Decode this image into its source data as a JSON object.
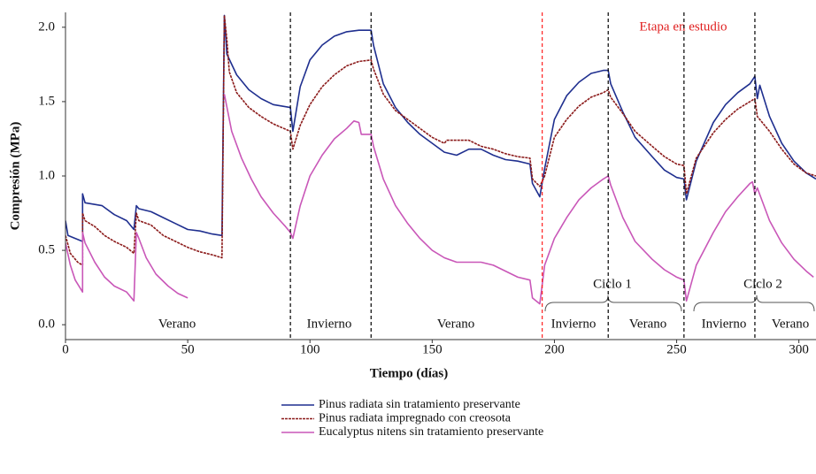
{
  "chart_data": {
    "type": "line",
    "x_label": "Tiempo (días)",
    "y_label": "Compresión (MPa)",
    "xlim": [
      0,
      307
    ],
    "ylim": [
      -0.1,
      2.1
    ],
    "xticks": [
      0,
      50,
      100,
      150,
      200,
      250,
      300
    ],
    "yticks": [
      {
        "value": 0,
        "label": "0.0"
      },
      {
        "value": 0.5,
        "label": "0.5"
      },
      {
        "value": 1,
        "label": "1.0"
      },
      {
        "value": 1.5,
        "label": "1.5"
      },
      {
        "value": 2,
        "label": "2.0"
      }
    ],
    "phase_lines": [
      {
        "x": 92,
        "color": "#000000"
      },
      {
        "x": 125,
        "color": "#000000"
      },
      {
        "x": 195,
        "color": "#ff2020"
      },
      {
        "x": 222,
        "color": "#000000"
      },
      {
        "x": 253,
        "color": "#000000"
      },
      {
        "x": 282,
        "color": "#000000"
      }
    ],
    "annotations": [
      "Verano",
      "Invierno",
      "Verano",
      "Etapa en estudio",
      "Invierno",
      "Verano",
      "Ciclo 1",
      "Invierno",
      "Verano",
      "Ciclo 2"
    ],
    "series": [
      {
        "name": "Pinus radiata sin tratamiento preservante",
        "color": "#1f2f8f",
        "dashed": false,
        "x": [
          0,
          1,
          4,
          7,
          7,
          8,
          15,
          20,
          25,
          28,
          29,
          30,
          35,
          40,
          45,
          50,
          55,
          60,
          64,
          65,
          66,
          70,
          75,
          80,
          85,
          92,
          93,
          96,
          100,
          105,
          110,
          115,
          120,
          125,
          126,
          130,
          135,
          140,
          145,
          150,
          155,
          160,
          165,
          170,
          175,
          180,
          185,
          190,
          191,
          194,
          196,
          200,
          205,
          210,
          215,
          220,
          222,
          223,
          228,
          233,
          240,
          245,
          250,
          253,
          254,
          258,
          265,
          270,
          275,
          280,
          282,
          283,
          284,
          288,
          293,
          298,
          303,
          307
        ],
        "values": [
          0.7,
          0.6,
          0.58,
          0.56,
          0.88,
          0.82,
          0.8,
          0.74,
          0.7,
          0.64,
          0.8,
          0.78,
          0.76,
          0.72,
          0.68,
          0.64,
          0.63,
          0.61,
          0.6,
          2.08,
          1.82,
          1.68,
          1.58,
          1.52,
          1.48,
          1.46,
          1.3,
          1.6,
          1.78,
          1.88,
          1.94,
          1.97,
          1.98,
          1.98,
          1.88,
          1.62,
          1.46,
          1.36,
          1.28,
          1.22,
          1.16,
          1.14,
          1.18,
          1.18,
          1.14,
          1.11,
          1.1,
          1.08,
          0.95,
          0.86,
          1.05,
          1.38,
          1.54,
          1.63,
          1.69,
          1.71,
          1.71,
          1.62,
          1.43,
          1.26,
          1.13,
          1.04,
          0.99,
          0.98,
          0.84,
          1.1,
          1.36,
          1.48,
          1.56,
          1.62,
          1.67,
          1.52,
          1.61,
          1.4,
          1.22,
          1.1,
          1.02,
          0.98
        ]
      },
      {
        "name": "Pinus radiata impregnado con creosota",
        "color": "#8b1a1a",
        "dashed": true,
        "x": [
          0,
          2,
          5,
          7,
          7,
          8,
          12,
          16,
          20,
          25,
          28,
          29,
          30,
          35,
          40,
          45,
          50,
          55,
          60,
          64,
          65,
          66,
          67,
          70,
          75,
          80,
          85,
          92,
          93,
          96,
          100,
          105,
          110,
          115,
          120,
          125,
          126,
          130,
          135,
          140,
          145,
          150,
          155,
          156,
          165,
          170,
          175,
          180,
          185,
          190,
          191,
          194,
          196,
          200,
          205,
          210,
          215,
          220,
          222,
          223,
          228,
          233,
          240,
          245,
          250,
          253,
          254,
          258,
          265,
          270,
          275,
          280,
          282,
          283,
          288,
          293,
          298,
          303,
          307
        ],
        "values": [
          0.6,
          0.48,
          0.42,
          0.4,
          0.75,
          0.7,
          0.66,
          0.6,
          0.56,
          0.52,
          0.48,
          0.75,
          0.7,
          0.67,
          0.6,
          0.56,
          0.52,
          0.49,
          0.47,
          0.45,
          2.08,
          1.92,
          1.7,
          1.56,
          1.46,
          1.4,
          1.35,
          1.3,
          1.18,
          1.34,
          1.48,
          1.6,
          1.68,
          1.74,
          1.77,
          1.78,
          1.72,
          1.55,
          1.44,
          1.38,
          1.32,
          1.26,
          1.22,
          1.24,
          1.24,
          1.2,
          1.18,
          1.15,
          1.13,
          1.12,
          0.98,
          0.93,
          1.0,
          1.26,
          1.38,
          1.47,
          1.53,
          1.56,
          1.58,
          1.53,
          1.42,
          1.3,
          1.2,
          1.13,
          1.08,
          1.07,
          0.88,
          1.12,
          1.29,
          1.38,
          1.45,
          1.5,
          1.52,
          1.4,
          1.3,
          1.18,
          1.08,
          1.02,
          1.0
        ]
      },
      {
        "name": "Eucalyptus nitens sin tratamiento preservante",
        "color": "#c957b8",
        "dashed": false,
        "x": [
          0,
          2,
          4,
          7,
          7,
          8,
          12,
          16,
          20,
          25,
          28,
          29,
          30,
          33,
          37,
          42,
          46,
          50,
          57,
          65,
          68,
          72,
          76,
          80,
          85,
          90,
          92,
          93,
          96,
          100,
          105,
          110,
          115,
          118,
          120,
          121,
          125,
          126,
          130,
          135,
          140,
          145,
          150,
          155,
          160,
          165,
          170,
          175,
          180,
          185,
          190,
          191,
          194,
          196,
          200,
          205,
          210,
          215,
          220,
          222,
          223,
          228,
          233,
          240,
          245,
          250,
          253,
          254,
          258,
          265,
          270,
          275,
          280,
          281,
          282,
          283,
          288,
          293,
          298,
          303,
          306
        ],
        "values": [
          0.55,
          0.4,
          0.3,
          0.22,
          0.62,
          0.55,
          0.42,
          0.32,
          0.26,
          0.22,
          0.16,
          0.62,
          0.58,
          0.45,
          0.34,
          0.26,
          0.21,
          0.18,
          null,
          1.55,
          1.3,
          1.12,
          0.98,
          0.86,
          0.75,
          0.66,
          0.62,
          0.58,
          0.8,
          1.0,
          1.14,
          1.25,
          1.32,
          1.37,
          1.36,
          1.28,
          1.28,
          1.2,
          0.98,
          0.8,
          0.68,
          0.58,
          0.5,
          0.45,
          0.42,
          0.42,
          0.42,
          0.4,
          0.36,
          0.32,
          0.3,
          0.18,
          0.14,
          0.4,
          0.58,
          0.72,
          0.84,
          0.92,
          0.98,
          1.0,
          0.94,
          0.72,
          0.56,
          0.44,
          0.37,
          0.32,
          0.3,
          0.16,
          0.4,
          0.62,
          0.76,
          0.86,
          0.95,
          0.96,
          0.88,
          0.92,
          0.7,
          0.55,
          0.44,
          0.36,
          0.32
        ]
      }
    ]
  }
}
